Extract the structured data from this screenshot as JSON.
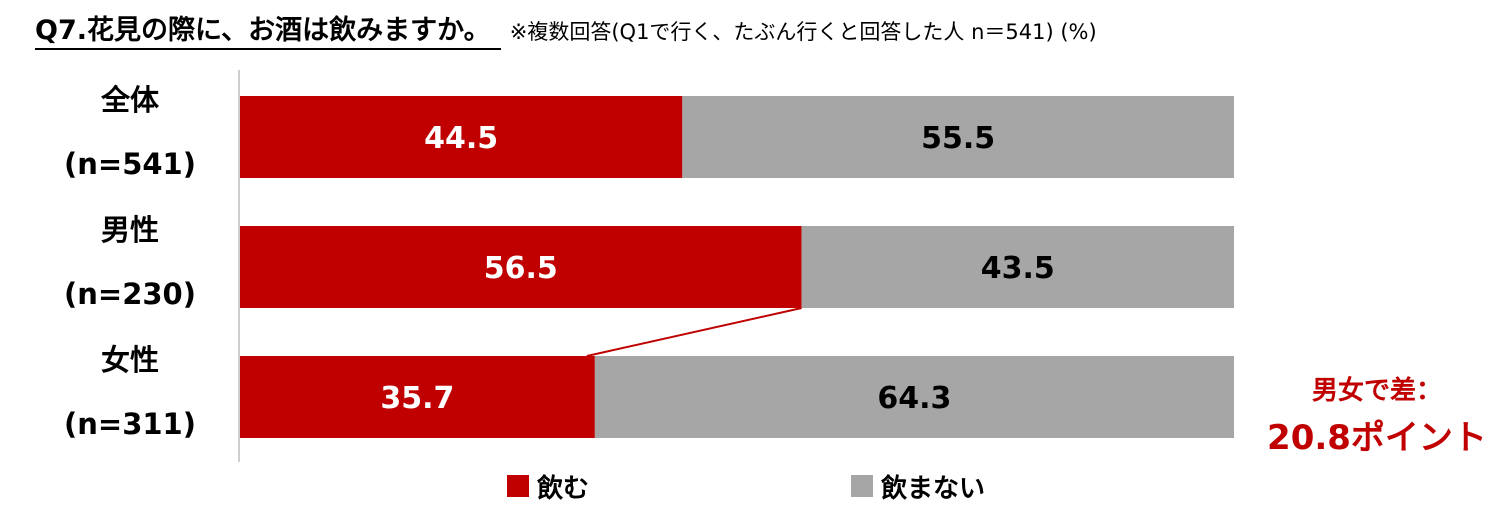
{
  "title": "Q7.花見の際に、お酒は飲みますか。",
  "note": "※複数回答(Q1で行く、たぶん行くと回答した人 n＝541) (%)",
  "callout": {
    "line1": "男女で差：",
    "line2": "20.8ポイント",
    "color": "#c00000"
  },
  "chart_data": {
    "type": "bar",
    "orientation": "horizontal",
    "stacked": true,
    "categories": [
      {
        "name": "全体",
        "n": "(n=541)"
      },
      {
        "name": "男性",
        "n": "(n=230)"
      },
      {
        "name": "女性",
        "n": "(n=311)"
      }
    ],
    "series": [
      {
        "name": "飲む",
        "color": "#c00000",
        "label_color": "#ffffff",
        "values": [
          44.5,
          56.5,
          35.7
        ]
      },
      {
        "name": "飲まない",
        "color": "#a6a6a6",
        "label_color": "#000000",
        "values": [
          55.5,
          43.5,
          64.3
        ]
      }
    ],
    "xlim": [
      0,
      100
    ],
    "legend_position": "bottom",
    "grid": false
  }
}
